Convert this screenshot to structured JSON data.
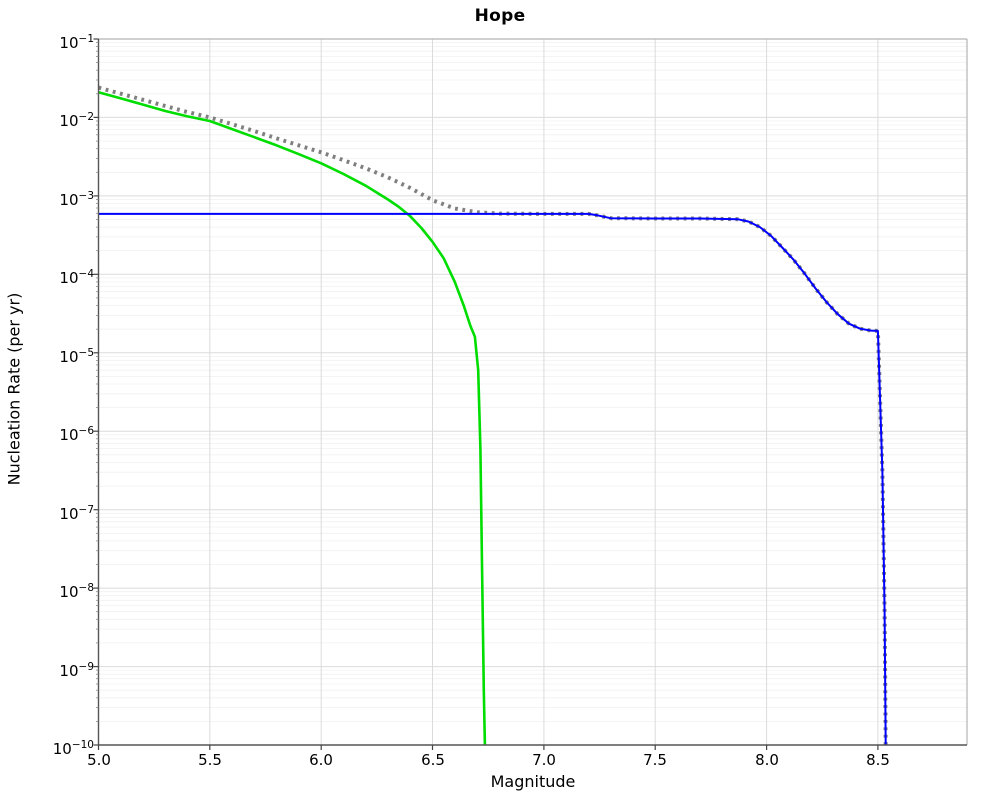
{
  "page": {
    "background": "#ffffff"
  },
  "chart_data": {
    "type": "line",
    "title": "Hope",
    "xlabel": "Magnitude",
    "ylabel": "Nucleation Rate (per yr)",
    "xlim": [
      5.0,
      8.9
    ],
    "ylim": [
      1e-10,
      0.1
    ],
    "x_ticks": [
      5.0,
      5.5,
      6.0,
      6.5,
      7.0,
      7.5,
      8.0,
      8.5
    ],
    "x_tick_labels": [
      "5.0",
      "5.5",
      "6.0",
      "6.5",
      "7.0",
      "7.5",
      "8.0",
      "8.5"
    ],
    "y_tick_exponents": [
      -1,
      -2,
      -3,
      -4,
      -5,
      -6,
      -7,
      -8,
      -9,
      -10
    ],
    "grid": "major+log-minor",
    "legend": "none",
    "style": {
      "major_grid_color": "#dbdbdb",
      "minor_grid_color": "#f0f0f0",
      "spine_dark": "#555555",
      "spine_light": "#b4b4b4",
      "tick_color": "#444444",
      "minor_tick_color": "#888888"
    },
    "series": [
      {
        "name": "total-rate-dotted",
        "color": "#7f7f7f",
        "line_style": "dotted",
        "width": 4,
        "points": [
          [
            5.0,
            0.024
          ],
          [
            5.1,
            0.0201
          ],
          [
            5.2,
            0.0168
          ],
          [
            5.3,
            0.014
          ],
          [
            5.4,
            0.0117
          ],
          [
            5.5,
            0.01
          ],
          [
            5.6,
            0.0082
          ],
          [
            5.7,
            0.0067
          ],
          [
            5.8,
            0.0054
          ],
          [
            5.9,
            0.0044
          ],
          [
            6.0,
            0.0036
          ],
          [
            6.1,
            0.00285
          ],
          [
            6.2,
            0.00225
          ],
          [
            6.3,
            0.00172
          ],
          [
            6.4,
            0.00126
          ],
          [
            6.5,
            0.00088
          ],
          [
            6.6,
            0.00069
          ],
          [
            6.7,
            0.00062
          ],
          [
            6.8,
            0.000595
          ],
          [
            7.0,
            0.00059
          ],
          [
            7.2,
            0.00059
          ],
          [
            7.24,
            0.000565
          ],
          [
            7.3,
            0.00052
          ],
          [
            7.5,
            0.000515
          ],
          [
            7.7,
            0.000515
          ],
          [
            7.87,
            0.000505
          ],
          [
            7.92,
            0.00047
          ],
          [
            7.97,
            0.0004
          ],
          [
            8.02,
            0.00031
          ],
          [
            8.07,
            0.00022
          ],
          [
            8.12,
            0.000155
          ],
          [
            8.17,
            0.000103
          ],
          [
            8.22,
            6.6e-05
          ],
          [
            8.27,
            4.4e-05
          ],
          [
            8.32,
            3.1e-05
          ],
          [
            8.37,
            2.35e-05
          ],
          [
            8.42,
            2.03e-05
          ],
          [
            8.47,
            1.92e-05
          ],
          [
            8.5,
            1.9e-05
          ],
          [
            8.51,
            2.5e-06
          ],
          [
            8.52,
            3e-07
          ],
          [
            8.53,
            5e-09
          ],
          [
            8.535,
            1e-10
          ]
        ]
      },
      {
        "name": "tapered-rate-green",
        "color": "#00dd00",
        "line_style": "solid",
        "width": 2.6,
        "points": [
          [
            5.0,
            0.021
          ],
          [
            5.1,
            0.0175
          ],
          [
            5.2,
            0.0146
          ],
          [
            5.3,
            0.0121
          ],
          [
            5.4,
            0.0103
          ],
          [
            5.5,
            0.009
          ],
          [
            5.6,
            0.0071
          ],
          [
            5.7,
            0.0056
          ],
          [
            5.8,
            0.0044
          ],
          [
            5.9,
            0.0034
          ],
          [
            6.0,
            0.0026
          ],
          [
            6.1,
            0.0019
          ],
          [
            6.2,
            0.00135
          ],
          [
            6.3,
            0.0009
          ],
          [
            6.35,
            0.00072
          ],
          [
            6.4,
            0.00055
          ],
          [
            6.45,
            0.00039
          ],
          [
            6.5,
            0.00026
          ],
          [
            6.55,
            0.00016
          ],
          [
            6.6,
            8e-05
          ],
          [
            6.64,
            4e-05
          ],
          [
            6.67,
            2.2e-05
          ],
          [
            6.69,
            1.6e-05
          ],
          [
            6.705,
            6e-06
          ],
          [
            6.715,
            6e-07
          ],
          [
            6.722,
            2e-08
          ],
          [
            6.73,
            5e-10
          ],
          [
            6.735,
            1e-10
          ]
        ]
      },
      {
        "name": "floor-rate-blue",
        "color": "#0000ff",
        "line_style": "solid",
        "width": 2,
        "points": [
          [
            5.0,
            0.00059
          ],
          [
            6.0,
            0.00059
          ],
          [
            6.8,
            0.00059
          ],
          [
            7.0,
            0.00059
          ],
          [
            7.2,
            0.00059
          ],
          [
            7.24,
            0.000565
          ],
          [
            7.3,
            0.00052
          ],
          [
            7.5,
            0.000515
          ],
          [
            7.7,
            0.000515
          ],
          [
            7.87,
            0.000505
          ],
          [
            7.92,
            0.00047
          ],
          [
            7.97,
            0.0004
          ],
          [
            8.02,
            0.00031
          ],
          [
            8.07,
            0.00022
          ],
          [
            8.12,
            0.000155
          ],
          [
            8.17,
            0.000103
          ],
          [
            8.22,
            6.6e-05
          ],
          [
            8.27,
            4.4e-05
          ],
          [
            8.32,
            3.1e-05
          ],
          [
            8.37,
            2.35e-05
          ],
          [
            8.42,
            2.03e-05
          ],
          [
            8.47,
            1.92e-05
          ],
          [
            8.5,
            1.9e-05
          ],
          [
            8.51,
            2.5e-06
          ],
          [
            8.52,
            3e-07
          ],
          [
            8.53,
            5e-09
          ],
          [
            8.535,
            1e-10
          ]
        ]
      }
    ]
  }
}
